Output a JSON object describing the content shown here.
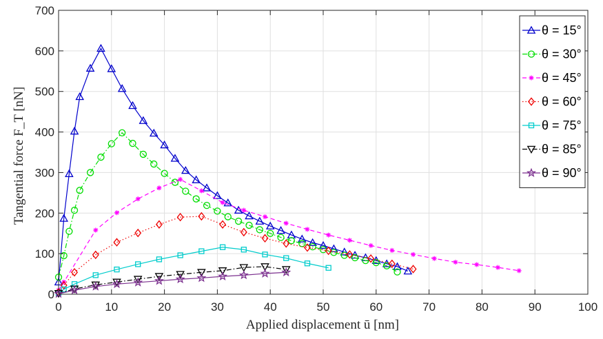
{
  "chart_data": {
    "type": "line",
    "title": "",
    "xlabel": "Applied displacement ū [nm]",
    "ylabel": "Tangential force F_T [nN]",
    "xlim": [
      0,
      100
    ],
    "ylim": [
      0,
      700
    ],
    "xticks": [
      0,
      10,
      20,
      30,
      40,
      50,
      60,
      70,
      80,
      90,
      100
    ],
    "yticks": [
      0,
      100,
      200,
      300,
      400,
      500,
      600,
      700
    ],
    "grid": true,
    "legend_position": "top-right",
    "series": [
      {
        "name": "θ = 15°",
        "color": "#0000cc",
        "marker": "triangle-up",
        "line": "solid",
        "x": [
          0,
          1,
          2,
          3,
          4,
          6,
          8,
          10,
          12,
          14,
          16,
          18,
          20,
          22,
          24,
          26,
          28,
          30,
          32,
          34,
          36,
          38,
          40,
          42,
          44,
          46,
          48,
          50,
          52,
          54,
          56,
          58,
          60,
          62,
          64,
          66
        ],
        "y": [
          30,
          187,
          297,
          402,
          487,
          557,
          606,
          556,
          507,
          465,
          428,
          397,
          368,
          335,
          305,
          282,
          262,
          243,
          225,
          207,
          193,
          180,
          168,
          157,
          146,
          136,
          127,
          120,
          112,
          104,
          96,
          90,
          83,
          75,
          68,
          57
        ]
      },
      {
        "name": "θ = 30°",
        "color": "#00dd00",
        "marker": "circle",
        "line": "dash-dot",
        "x": [
          0,
          1,
          2,
          3,
          4,
          6,
          8,
          10,
          12,
          14,
          16,
          18,
          20,
          22,
          24,
          26,
          28,
          30,
          32,
          34,
          36,
          38,
          40,
          42,
          44,
          46,
          48,
          50,
          52,
          54,
          56,
          58,
          60,
          62,
          64
        ],
        "y": [
          42,
          95,
          155,
          207,
          256,
          300,
          338,
          371,
          398,
          372,
          345,
          321,
          298,
          276,
          254,
          235,
          219,
          205,
          191,
          180,
          170,
          159,
          150,
          140,
          132,
          125,
          117,
          110,
          103,
          96,
          90,
          83,
          78,
          70,
          55
        ]
      },
      {
        "name": "θ = 45°",
        "color": "#ff00ff",
        "marker": "asterisk",
        "line": "dashed",
        "x": [
          0,
          1,
          7,
          11,
          15,
          19,
          23,
          27,
          31,
          35,
          39,
          43,
          47,
          51,
          55,
          59,
          63,
          67,
          71,
          75,
          79,
          83,
          87
        ],
        "y": [
          10,
          30,
          158,
          201,
          235,
          262,
          283,
          255,
          226,
          207,
          191,
          175,
          160,
          146,
          133,
          120,
          108,
          98,
          88,
          79,
          73,
          66,
          58
        ]
      },
      {
        "name": "θ = 60°",
        "color": "#ee0000",
        "marker": "diamond",
        "line": "dotted",
        "x": [
          0,
          1,
          3,
          7,
          11,
          15,
          19,
          23,
          27,
          31,
          35,
          39,
          43,
          47,
          51,
          55,
          59,
          63,
          67
        ],
        "y": [
          5,
          22,
          54,
          97,
          128,
          151,
          172,
          190,
          192,
          172,
          153,
          138,
          125,
          115,
          107,
          98,
          88,
          75,
          62
        ]
      },
      {
        "name": "θ = 75°",
        "color": "#00cccc",
        "marker": "square",
        "line": "solid",
        "x": [
          0,
          1,
          3,
          7,
          11,
          15,
          19,
          23,
          27,
          31,
          35,
          39,
          43,
          47,
          51
        ],
        "y": [
          3,
          12,
          25,
          47,
          61,
          74,
          86,
          96,
          106,
          116,
          110,
          98,
          89,
          76,
          65
        ]
      },
      {
        "name": "θ = 85°",
        "color": "#000000",
        "marker": "triangle-down",
        "line": "dash-dot",
        "x": [
          0,
          3,
          7,
          11,
          15,
          19,
          23,
          27,
          31,
          35,
          39,
          43
        ],
        "y": [
          2,
          13,
          23,
          30,
          37,
          44,
          49,
          54,
          58,
          66,
          68,
          61
        ]
      },
      {
        "name": "θ = 90°",
        "color": "#7b2f8e",
        "marker": "pentagram",
        "line": "solid",
        "x": [
          0,
          3,
          7,
          11,
          15,
          19,
          23,
          27,
          31,
          35,
          39,
          43
        ],
        "y": [
          1,
          10,
          19,
          25,
          29,
          33,
          37,
          40,
          44,
          47,
          51,
          54
        ]
      }
    ]
  }
}
